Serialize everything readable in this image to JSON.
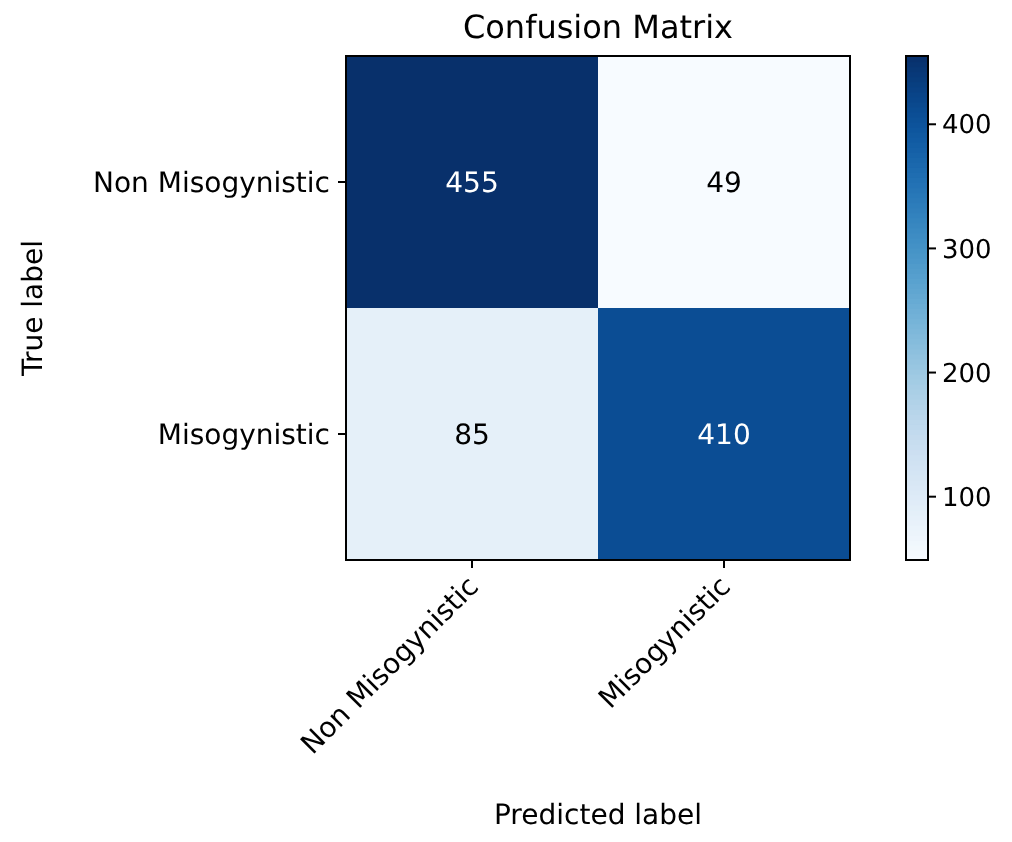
{
  "chart_data": {
    "type": "heatmap",
    "title": "Confusion Matrix",
    "xlabel": "Predicted label",
    "ylabel": "True label",
    "categories": [
      "Non Misogynistic",
      "Misogynistic"
    ],
    "y_categories": [
      "Non Misogynistic",
      "Misogynistic"
    ],
    "cells": [
      [
        455,
        49
      ],
      [
        85,
        410
      ]
    ],
    "data_labels": true,
    "clim": [
      49,
      455
    ],
    "cticks": [
      100,
      200,
      300,
      400
    ]
  }
}
